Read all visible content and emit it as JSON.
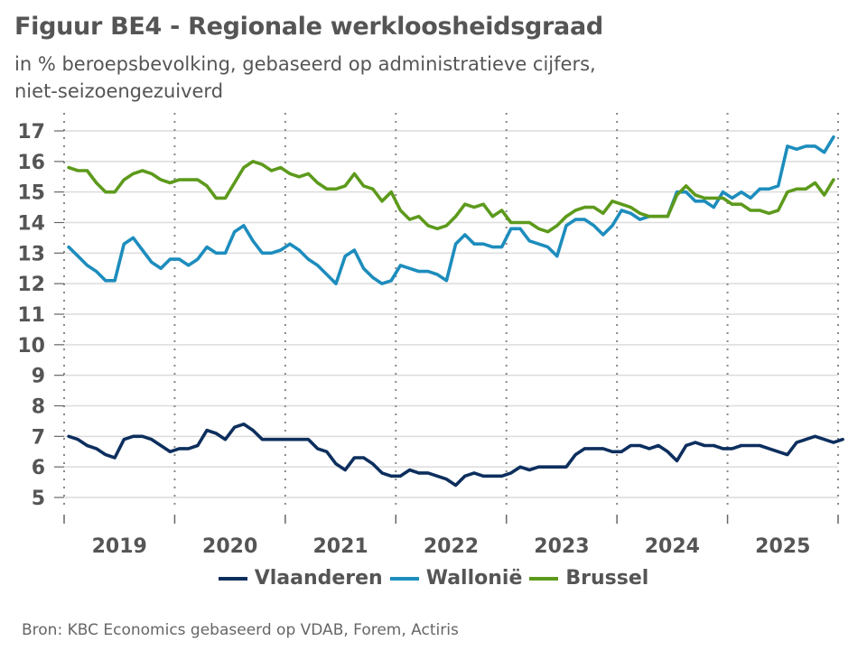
{
  "header": {
    "title": "Figuur BE4 - Regionale werkloosheidsgraad",
    "subtitle_line1": "in % beroepsbevolking, gebaseerd op administratieve cijfers,",
    "subtitle_line2": "niet-seizoengezuiverd"
  },
  "source": "Bron: KBC Economics gebaseerd op VDAB, Forem, Actiris",
  "chart_data": {
    "type": "line",
    "title": "Figuur BE4 - Regionale werkloosheidsgraad",
    "subtitle": "in % beroepsbevolking, gebaseerd op administratieve cijfers, niet-seizoengezuiverd",
    "xlabel": "",
    "ylabel": "",
    "ylim": [
      5,
      17
    ],
    "yticks": [
      5,
      6,
      7,
      8,
      9,
      10,
      11,
      12,
      13,
      14,
      15,
      16,
      17
    ],
    "xtick_labels": [
      "2019",
      "2020",
      "2021",
      "2022",
      "2023",
      "2024",
      "2025"
    ],
    "x_start": "2019-01",
    "x_frequency": "monthly",
    "grid": "horizontal solid, vertical dotted at year boundaries",
    "legend_position": "bottom",
    "series": [
      {
        "name": "Vlaanderen",
        "color": "#0d2f5e",
        "values": [
          7.0,
          6.9,
          6.7,
          6.6,
          6.4,
          6.3,
          6.9,
          7.0,
          7.0,
          6.9,
          6.7,
          6.5,
          6.6,
          6.6,
          6.7,
          7.2,
          7.1,
          6.9,
          7.3,
          7.4,
          7.2,
          6.9,
          6.9,
          6.9,
          6.9,
          6.9,
          6.9,
          6.6,
          6.5,
          6.1,
          5.9,
          6.3,
          6.3,
          6.1,
          5.8,
          5.7,
          5.7,
          5.9,
          5.8,
          5.8,
          5.7,
          5.6,
          5.4,
          5.7,
          5.8,
          5.7,
          5.7,
          5.7,
          5.8,
          6.0,
          5.9,
          6.0,
          6.0,
          6.0,
          6.0,
          6.4,
          6.6,
          6.6,
          6.6,
          6.5,
          6.5,
          6.7,
          6.7,
          6.6,
          6.7,
          6.5,
          6.2,
          6.7,
          6.8,
          6.7,
          6.7,
          6.6,
          6.6,
          6.7,
          6.7,
          6.7,
          6.6,
          6.5,
          6.4,
          6.8,
          6.9,
          7.0,
          6.9,
          6.8,
          6.9
        ]
      },
      {
        "name": "Wallonië",
        "color": "#1d8dbd",
        "values": [
          13.2,
          12.9,
          12.6,
          12.4,
          12.1,
          12.1,
          13.3,
          13.5,
          13.1,
          12.7,
          12.5,
          12.8,
          12.8,
          12.6,
          12.8,
          13.2,
          13.0,
          13.0,
          13.7,
          13.9,
          13.4,
          13.0,
          13.0,
          13.1,
          13.3,
          13.1,
          12.8,
          12.6,
          12.3,
          12.0,
          12.9,
          13.1,
          12.5,
          12.2,
          12.0,
          12.1,
          12.6,
          12.5,
          12.4,
          12.4,
          12.3,
          12.1,
          13.3,
          13.6,
          13.3,
          13.3,
          13.2,
          13.2,
          13.8,
          13.8,
          13.4,
          13.3,
          13.2,
          12.9,
          13.9,
          14.1,
          14.1,
          13.9,
          13.6,
          13.9,
          14.4,
          14.3,
          14.1,
          14.2,
          14.2,
          14.2,
          15.0,
          15.0,
          14.7,
          14.7,
          14.5,
          15.0,
          14.8,
          15.0,
          14.8,
          15.1,
          15.1,
          15.2,
          16.5,
          16.4,
          16.5,
          16.5,
          16.3,
          16.8
        ]
      },
      {
        "name": "Brussel",
        "color": "#5d9a1c",
        "values": [
          15.8,
          15.7,
          15.7,
          15.3,
          15.0,
          15.0,
          15.4,
          15.6,
          15.7,
          15.6,
          15.4,
          15.3,
          15.4,
          15.4,
          15.4,
          15.2,
          14.8,
          14.8,
          15.3,
          15.8,
          16.0,
          15.9,
          15.7,
          15.8,
          15.6,
          15.5,
          15.6,
          15.3,
          15.1,
          15.1,
          15.2,
          15.6,
          15.2,
          15.1,
          14.7,
          15.0,
          14.4,
          14.1,
          14.2,
          13.9,
          13.8,
          13.9,
          14.2,
          14.6,
          14.5,
          14.6,
          14.2,
          14.4,
          14.0,
          14.0,
          14.0,
          13.8,
          13.7,
          13.9,
          14.2,
          14.4,
          14.5,
          14.5,
          14.3,
          14.7,
          14.6,
          14.5,
          14.3,
          14.2,
          14.2,
          14.2,
          14.9,
          15.2,
          14.9,
          14.8,
          14.8,
          14.8,
          14.6,
          14.6,
          14.4,
          14.4,
          14.3,
          14.4,
          15.0,
          15.1,
          15.1,
          15.3,
          14.9,
          15.4
        ]
      }
    ]
  }
}
